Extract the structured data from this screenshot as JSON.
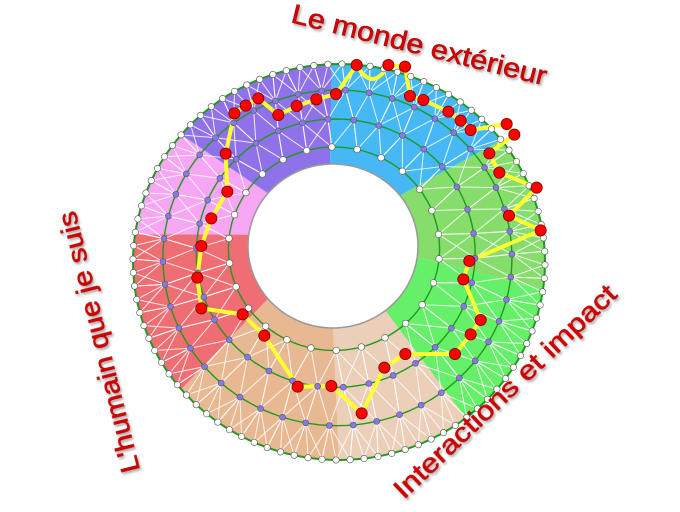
{
  "labels": {
    "top": "Le monde extérieur",
    "left": "L'humain que je suis",
    "bottom_right": "Interactions et impact"
  },
  "colors": {
    "label": "#d40000",
    "ring_line": "#1e9a1e",
    "path": "#ffff33",
    "path_node": "#ff0000",
    "middle_node": "#8877ee",
    "edge_node": "#ffffff",
    "sectors": [
      "#45b8f5",
      "#86dd6c",
      "#66f06a",
      "#ebcfb8",
      "#e8b892",
      "#ef6e74",
      "#f6a6f2",
      "#8f72ea"
    ]
  }
}
